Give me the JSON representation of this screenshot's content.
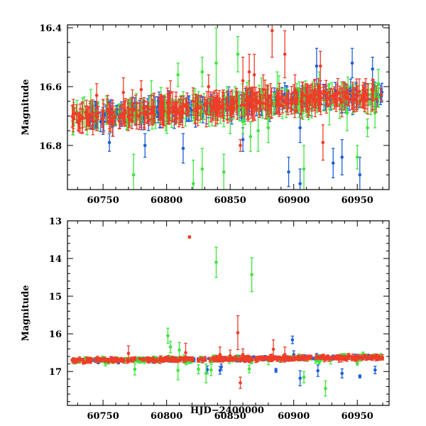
{
  "figure": {
    "xlabel": "HJD−2400000",
    "colors": {
      "blue": "#1f5fd8",
      "green": "#3de63d",
      "red": "#f03c28"
    }
  },
  "chart_data": [
    {
      "type": "scatter",
      "panel": "top",
      "title": "",
      "xlabel": "",
      "ylabel": "Magnitude",
      "xlim": [
        60722,
        60975
      ],
      "ylim": [
        16.95,
        16.39
      ],
      "x_ticks": [
        60750,
        60800,
        60850,
        60900,
        60950
      ],
      "y_ticks": [
        16.4,
        16.6,
        16.8
      ],
      "trend": {
        "x0": 60725,
        "y0": 16.705,
        "x1": 60970,
        "y1": 16.625
      },
      "series": [
        {
          "name": "blue",
          "color": "#1f5fd8",
          "scatter": 0.012,
          "typical_err": 0.03,
          "x_range": [
            60740,
            60970
          ],
          "count": 220,
          "outliers": [
            {
              "x": 60755,
              "y": 16.79,
              "err": 0.03
            },
            {
              "x": 60783,
              "y": 16.8,
              "err": 0.04
            },
            {
              "x": 60813,
              "y": 16.81,
              "err": 0.05
            },
            {
              "x": 60860,
              "y": 16.78,
              "err": 0.04
            },
            {
              "x": 60896,
              "y": 16.89,
              "err": 0.05
            },
            {
              "x": 60905,
              "y": 16.74,
              "err": 0.05
            },
            {
              "x": 60918,
              "y": 16.53,
              "err": 0.06
            },
            {
              "x": 60931,
              "y": 16.86,
              "err": 0.05
            },
            {
              "x": 60938,
              "y": 16.84,
              "err": 0.06
            },
            {
              "x": 60946,
              "y": 16.52,
              "err": 0.05
            },
            {
              "x": 60952,
              "y": 16.9,
              "err": 0.06
            },
            {
              "x": 60962,
              "y": 16.54,
              "err": 0.04
            },
            {
              "x": 60905,
              "y": 16.93,
              "err": 0.05
            },
            {
              "x": 60921,
              "y": 16.62,
              "err": 0.04
            }
          ]
        },
        {
          "name": "green",
          "color": "#3de63d",
          "scatter": 0.018,
          "typical_err": 0.035,
          "x_range": [
            60725,
            60970
          ],
          "count": 190,
          "outliers": [
            {
              "x": 60774,
              "y": 16.9,
              "err": 0.07
            },
            {
              "x": 60788,
              "y": 16.63,
              "err": 0.05
            },
            {
              "x": 60809,
              "y": 16.56,
              "err": 0.04
            },
            {
              "x": 60821,
              "y": 16.93,
              "err": 0.08
            },
            {
              "x": 60828,
              "y": 16.88,
              "err": 0.07
            },
            {
              "x": 60828,
              "y": 16.55,
              "err": 0.05
            },
            {
              "x": 60839,
              "y": 16.52,
              "err": 0.12
            },
            {
              "x": 60845,
              "y": 16.89,
              "err": 0.06
            },
            {
              "x": 60856,
              "y": 16.49,
              "err": 0.06
            },
            {
              "x": 60872,
              "y": 16.75,
              "err": 0.07
            },
            {
              "x": 60887,
              "y": 16.61,
              "err": 0.06
            },
            {
              "x": 60908,
              "y": 16.88,
              "err": 0.08
            },
            {
              "x": 60928,
              "y": 16.66,
              "err": 0.07
            },
            {
              "x": 60942,
              "y": 16.69,
              "err": 0.06
            },
            {
              "x": 60950,
              "y": 16.84,
              "err": 0.04
            },
            {
              "x": 60958,
              "y": 16.74,
              "err": 0.03
            },
            {
              "x": 60850,
              "y": 16.71,
              "err": 0.05
            },
            {
              "x": 60860,
              "y": 16.72,
              "err": 0.04
            },
            {
              "x": 60880,
              "y": 16.74,
              "err": 0.05
            },
            {
              "x": 60866,
              "y": 16.77,
              "err": 0.05
            },
            {
              "x": 60920,
              "y": 16.6,
              "err": 0.05
            }
          ]
        },
        {
          "name": "red",
          "color": "#f03c28",
          "scatter": 0.012,
          "typical_err": 0.035,
          "x_range": [
            60725,
            60970
          ],
          "count": 330,
          "outliers": [
            {
              "x": 60745,
              "y": 16.63,
              "err": 0.04
            },
            {
              "x": 60766,
              "y": 16.62,
              "err": 0.05
            },
            {
              "x": 60780,
              "y": 16.61,
              "err": 0.03
            },
            {
              "x": 60803,
              "y": 16.62,
              "err": 0.04
            },
            {
              "x": 60833,
              "y": 16.6,
              "err": 0.04
            },
            {
              "x": 60858,
              "y": 16.8,
              "err": 0.02
            },
            {
              "x": 60860,
              "y": 16.58,
              "err": 0.08
            },
            {
              "x": 60865,
              "y": 16.55,
              "err": 0.06
            },
            {
              "x": 60869,
              "y": 16.56,
              "err": 0.07
            },
            {
              "x": 60883,
              "y": 16.41,
              "err": 0.09
            },
            {
              "x": 60893,
              "y": 16.49,
              "err": 0.08
            },
            {
              "x": 60901,
              "y": 16.62,
              "err": 0.06
            },
            {
              "x": 60921,
              "y": 16.53,
              "err": 0.05
            },
            {
              "x": 60923,
              "y": 16.79,
              "err": 0.06
            },
            {
              "x": 60876,
              "y": 16.61,
              "err": 0.05
            }
          ]
        }
      ]
    },
    {
      "type": "scatter",
      "panel": "bottom",
      "title": "",
      "xlabel": "HJD−2400000",
      "ylabel": "Magnitude",
      "xlim": [
        60722,
        60975
      ],
      "ylim": [
        17.9,
        13.0
      ],
      "x_ticks": [
        60750,
        60800,
        60850,
        60900,
        60950
      ],
      "y_ticks": [
        13,
        14,
        15,
        16,
        17
      ],
      "trend": {
        "x0": 60725,
        "y0": 16.705,
        "x1": 60970,
        "y1": 16.625
      },
      "series": [
        {
          "name": "blue",
          "color": "#1f5fd8",
          "scatter": 0.02,
          "typical_err": 0.04,
          "x_range": [
            60740,
            60970
          ],
          "count": 200,
          "outliers": [
            {
              "x": 60842,
              "y": 16.97,
              "err": 0.1
            },
            {
              "x": 60899,
              "y": 16.16,
              "err": 0.1
            },
            {
              "x": 60900,
              "y": 16.55,
              "err": 0.1
            },
            {
              "x": 60905,
              "y": 17.18,
              "err": 0.2
            },
            {
              "x": 60918,
              "y": 16.62,
              "err": 0.1
            },
            {
              "x": 60919,
              "y": 16.98,
              "err": 0.15
            },
            {
              "x": 60938,
              "y": 17.05,
              "err": 0.12
            },
            {
              "x": 60952,
              "y": 17.13,
              "err": 0.04
            },
            {
              "x": 60964,
              "y": 16.96,
              "err": 0.1
            },
            {
              "x": 60886,
              "y": 16.97,
              "err": 0.05
            },
            {
              "x": 60832,
              "y": 16.95,
              "err": 0.1
            },
            {
              "x": 60843,
              "y": 16.88,
              "err": 0.08
            }
          ]
        },
        {
          "name": "green",
          "color": "#3de63d",
          "scatter": 0.03,
          "typical_err": 0.05,
          "x_range": [
            60725,
            60970
          ],
          "count": 170,
          "outliers": [
            {
              "x": 60839,
              "y": 14.1,
              "err": 0.4
            },
            {
              "x": 60867,
              "y": 14.43,
              "err": 0.45
            },
            {
              "x": 60801,
              "y": 16.05,
              "err": 0.2
            },
            {
              "x": 60803,
              "y": 16.35,
              "err": 0.15
            },
            {
              "x": 60809,
              "y": 16.97,
              "err": 0.25
            },
            {
              "x": 60810,
              "y": 16.43,
              "err": 0.2
            },
            {
              "x": 60831,
              "y": 17.05,
              "err": 0.25
            },
            {
              "x": 60835,
              "y": 16.96,
              "err": 0.15
            },
            {
              "x": 60825,
              "y": 16.94,
              "err": 0.12
            },
            {
              "x": 60775,
              "y": 16.94,
              "err": 0.15
            },
            {
              "x": 60908,
              "y": 17.15,
              "err": 0.15
            },
            {
              "x": 60925,
              "y": 17.45,
              "err": 0.2
            },
            {
              "x": 60929,
              "y": 16.7,
              "err": 0.1
            },
            {
              "x": 60865,
              "y": 16.93,
              "err": 0.1
            },
            {
              "x": 60880,
              "y": 16.72,
              "err": 0.1
            },
            {
              "x": 60920,
              "y": 16.75,
              "err": 0.05
            },
            {
              "x": 60950,
              "y": 16.78,
              "err": 0.05
            }
          ]
        },
        {
          "name": "red",
          "color": "#f03c28",
          "scatter": 0.02,
          "typical_err": 0.05,
          "x_range": [
            60725,
            60970
          ],
          "count": 320,
          "outliers": [
            {
              "x": 60818,
              "y": 13.43,
              "err": 0.03
            },
            {
              "x": 60856,
              "y": 15.97,
              "err": 0.45
            },
            {
              "x": 60858,
              "y": 17.3,
              "err": 0.15
            },
            {
              "x": 60884,
              "y": 16.41,
              "err": 0.25
            },
            {
              "x": 60770,
              "y": 16.52,
              "err": 0.2
            },
            {
              "x": 60815,
              "y": 16.5,
              "err": 0.25
            },
            {
              "x": 60842,
              "y": 16.55,
              "err": 0.2
            },
            {
              "x": 60850,
              "y": 16.58,
              "err": 0.15
            },
            {
              "x": 60860,
              "y": 16.55,
              "err": 0.15
            },
            {
              "x": 60893,
              "y": 16.55,
              "err": 0.2
            }
          ]
        }
      ]
    }
  ]
}
